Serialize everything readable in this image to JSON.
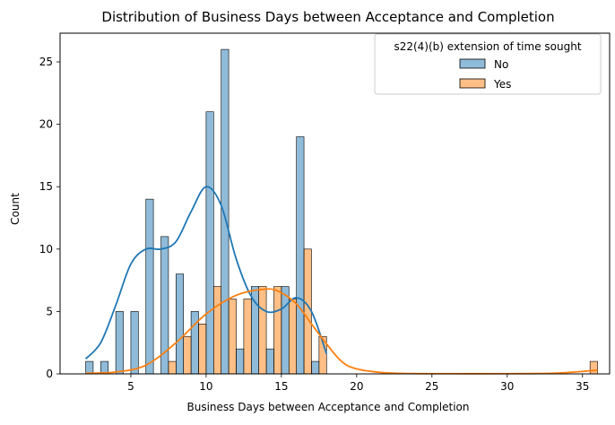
{
  "chart_data": {
    "type": "bar",
    "title": "Distribution of Business Days between Acceptance and Completion",
    "xlabel": "Business Days between Acceptance and Completion",
    "ylabel": "Count",
    "xlim": [
      0.3,
      36.8
    ],
    "ylim": [
      0,
      27.3
    ],
    "xticks": [
      5,
      10,
      15,
      20,
      25,
      30,
      35
    ],
    "yticks": [
      0,
      5,
      10,
      15,
      20,
      25
    ],
    "bin_start": 2,
    "bin_width": 1,
    "legend": {
      "title": "s22(4)(b) extension of time sought",
      "placement": "upper-right"
    },
    "series": [
      {
        "name": "No",
        "color": "#1f77b4",
        "bins": [
          {
            "x": 2,
            "count": 1
          },
          {
            "x": 3,
            "count": 1
          },
          {
            "x": 4,
            "count": 5
          },
          {
            "x": 5,
            "count": 5
          },
          {
            "x": 6,
            "count": 14
          },
          {
            "x": 7,
            "count": 11
          },
          {
            "x": 8,
            "count": 8
          },
          {
            "x": 9,
            "count": 5
          },
          {
            "x": 10,
            "count": 21
          },
          {
            "x": 11,
            "count": 26
          },
          {
            "x": 12,
            "count": 2
          },
          {
            "x": 13,
            "count": 7
          },
          {
            "x": 14,
            "count": 2
          },
          {
            "x": 15,
            "count": 7
          },
          {
            "x": 16,
            "count": 19
          },
          {
            "x": 17,
            "count": 1
          }
        ],
        "kde": [
          [
            2,
            1.2
          ],
          [
            3,
            2.5
          ],
          [
            4,
            5.5
          ],
          [
            5,
            8.8
          ],
          [
            6,
            10.0
          ],
          [
            7,
            10.0
          ],
          [
            8,
            10.6
          ],
          [
            9,
            13.0
          ],
          [
            10,
            15.0
          ],
          [
            11,
            13.5
          ],
          [
            12,
            9.2
          ],
          [
            13,
            6.2
          ],
          [
            14,
            5.0
          ],
          [
            15,
            5.2
          ],
          [
            16,
            6.1
          ],
          [
            17,
            5.0
          ],
          [
            18,
            1.6
          ]
        ]
      },
      {
        "name": "Yes",
        "color": "#ff7f0e",
        "bins": [
          {
            "x": 7,
            "count": 1
          },
          {
            "x": 8,
            "count": 3
          },
          {
            "x": 9,
            "count": 4
          },
          {
            "x": 10,
            "count": 7
          },
          {
            "x": 11,
            "count": 6
          },
          {
            "x": 12,
            "count": 6
          },
          {
            "x": 13,
            "count": 7
          },
          {
            "x": 14,
            "count": 7
          },
          {
            "x": 15,
            "count": 6
          },
          {
            "x": 16,
            "count": 10
          },
          {
            "x": 17,
            "count": 3
          },
          {
            "x": 35,
            "count": 1
          }
        ],
        "kde": [
          [
            2,
            0.05
          ],
          [
            4,
            0.15
          ],
          [
            6,
            0.7
          ],
          [
            8,
            2.5
          ],
          [
            10,
            4.8
          ],
          [
            12,
            6.3
          ],
          [
            14,
            6.8
          ],
          [
            15,
            6.5
          ],
          [
            16,
            5.6
          ],
          [
            17,
            4.0
          ],
          [
            18,
            2.4
          ],
          [
            19,
            1.0
          ],
          [
            20,
            0.4
          ],
          [
            22,
            0.08
          ],
          [
            25,
            0.02
          ],
          [
            30,
            0.02
          ],
          [
            33,
            0.05
          ],
          [
            35,
            0.2
          ],
          [
            36,
            0.3
          ]
        ]
      }
    ]
  }
}
